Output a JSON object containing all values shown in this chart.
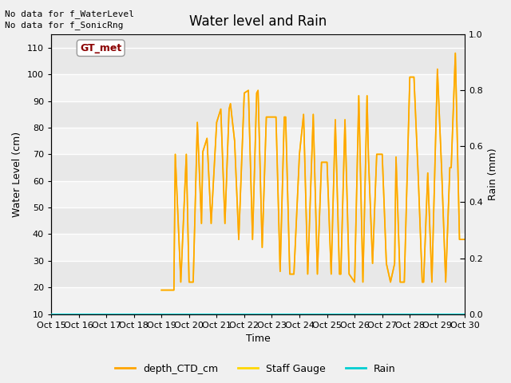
{
  "title": "Water level and Rain",
  "xlabel": "Time",
  "ylabel_left": "Water Level (cm)",
  "ylabel_right": "Rain (mm)",
  "annotation_lines": [
    "No data for f_WaterLevel",
    "No data for f_SonicRng"
  ],
  "gt_met_label": "GT_met",
  "ylim_left": [
    10,
    115
  ],
  "ylim_right": [
    0.0,
    1.0
  ],
  "yticks_left": [
    10,
    20,
    30,
    40,
    50,
    60,
    70,
    80,
    90,
    100,
    110
  ],
  "yticks_right": [
    0.0,
    0.2,
    0.4,
    0.6,
    0.8,
    1.0
  ],
  "xtick_labels": [
    "Oct 15",
    "Oct 16",
    "Oct 17",
    "Oct 18",
    "Oct 19",
    "Oct 20",
    "Oct 21",
    "Oct 22",
    "Oct 23",
    "Oct 24",
    "Oct 25",
    "Oct 26",
    "Oct 27",
    "Oct 28",
    "Oct 29",
    "Oct 30"
  ],
  "fig_bg_color": "#f0f0f0",
  "plot_bg_color": "#e8e8e8",
  "depth_CTD_color": "#FFA500",
  "staff_gauge_color": "#FFD700",
  "rain_color": "#00CED1",
  "legend_labels": [
    "depth_CTD_cm",
    "Staff Gauge",
    "Rain"
  ],
  "depth_CTD_data_x": [
    19.0,
    19.15,
    19.3,
    19.45,
    19.5,
    19.7,
    19.9,
    20.0,
    20.15,
    20.3,
    20.45,
    20.5,
    20.65,
    20.8,
    21.0,
    21.15,
    21.3,
    21.45,
    21.5,
    21.65,
    21.8,
    22.0,
    22.15,
    22.3,
    22.45,
    22.5,
    22.65,
    22.8,
    23.0,
    23.15,
    23.3,
    23.45,
    23.5,
    23.65,
    23.8,
    24.0,
    24.15,
    24.3,
    24.45,
    24.5,
    24.65,
    24.8,
    25.0,
    25.15,
    25.3,
    25.45,
    25.5,
    25.65,
    25.8,
    26.0,
    26.15,
    26.3,
    26.45,
    26.5,
    26.65,
    26.8,
    27.0,
    27.15,
    27.3,
    27.45,
    27.5,
    27.65,
    27.8,
    28.0,
    28.15,
    28.3,
    28.45,
    28.5,
    28.65,
    28.8,
    29.0,
    29.15,
    29.3,
    29.45,
    29.5,
    29.65,
    29.8,
    30.0
  ],
  "depth_CTD_data_y": [
    19,
    19,
    19,
    19,
    70,
    22,
    70,
    22,
    22,
    82,
    44,
    71,
    76,
    44,
    82,
    87,
    44,
    87,
    89,
    75,
    38,
    93,
    94,
    38,
    93,
    94,
    35,
    84,
    84,
    84,
    26,
    84,
    84,
    25,
    25,
    70,
    85,
    25,
    70,
    85,
    25,
    67,
    67,
    25,
    83,
    25,
    25,
    83,
    25,
    22,
    92,
    22,
    92,
    69,
    29,
    70,
    70,
    29,
    22,
    29,
    69,
    22,
    22,
    99,
    99,
    63,
    22,
    22,
    63,
    22,
    102,
    65,
    22,
    65,
    65,
    108,
    38,
    38
  ],
  "xlim": [
    15,
    30
  ]
}
